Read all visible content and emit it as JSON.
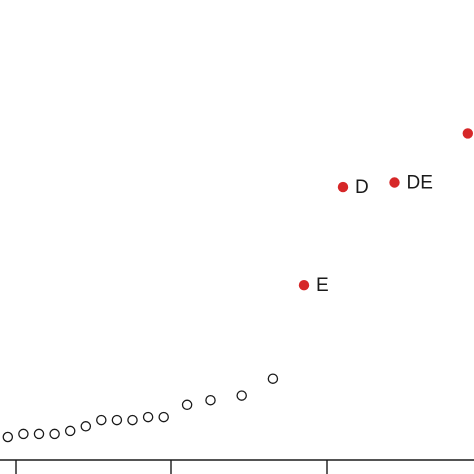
{
  "chart_data": {
    "type": "scatter",
    "title": "",
    "xlabel": "",
    "ylabel": "",
    "grid": false,
    "xlim": [
      0.5,
      30.9
    ],
    "ylim": [
      0,
      30
    ],
    "series": [
      {
        "style": "open",
        "points": [
          {
            "x": 1,
            "y": 1.5
          },
          {
            "x": 2,
            "y": 1.7
          },
          {
            "x": 3,
            "y": 1.7
          },
          {
            "x": 4,
            "y": 1.7
          },
          {
            "x": 5,
            "y": 1.9
          },
          {
            "x": 6,
            "y": 2.2
          },
          {
            "x": 7,
            "y": 2.6
          },
          {
            "x": 8,
            "y": 2.6
          },
          {
            "x": 9,
            "y": 2.6
          },
          {
            "x": 10,
            "y": 2.8
          },
          {
            "x": 11,
            "y": 2.8
          },
          {
            "x": 12.5,
            "y": 3.6
          },
          {
            "x": 14,
            "y": 3.9
          },
          {
            "x": 16,
            "y": 4.2
          },
          {
            "x": 18,
            "y": 5.3
          }
        ]
      },
      {
        "style": "filled",
        "color": "#d62728",
        "points": [
          {
            "x": 20,
            "y": 11.4,
            "label": "E"
          },
          {
            "x": 22.5,
            "y": 17.8,
            "label": "D"
          },
          {
            "x": 25.8,
            "y": 18.1,
            "label": "DE"
          },
          {
            "x": 30.5,
            "y": 21.3,
            "label": ""
          }
        ]
      }
    ],
    "colors": {
      "open_stroke": "#1a1a1a",
      "filled": "#d62728",
      "axis": "#1a1a1a"
    }
  }
}
